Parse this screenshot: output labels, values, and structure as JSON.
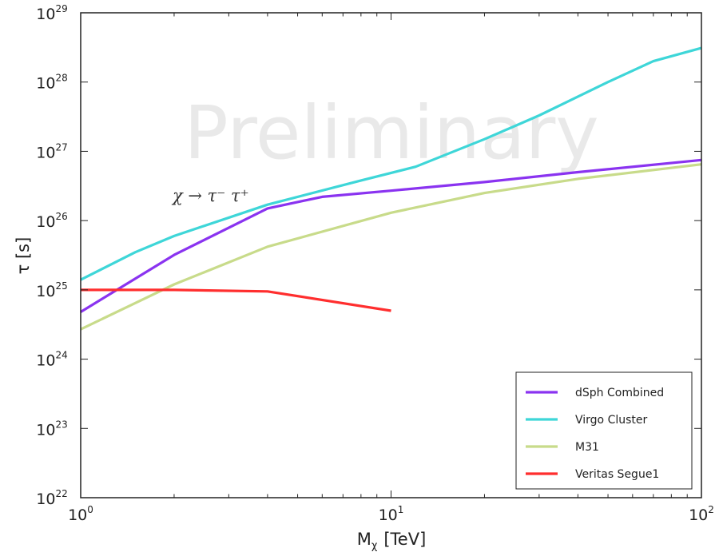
{
  "chart_data": {
    "type": "line",
    "xlabel": "M",
    "xlabel_sub": "χ",
    "xlabel_unit": "[TeV]",
    "ylabel": "τ [s]",
    "xscale": "log",
    "yscale": "log",
    "xlim": [
      1,
      100
    ],
    "ylim": [
      1e+22,
      1e+29
    ],
    "x_ticks": [
      {
        "value": 1,
        "base": "10",
        "exp": "0"
      },
      {
        "value": 10,
        "base": "10",
        "exp": "1"
      },
      {
        "value": 100,
        "base": "10",
        "exp": "2"
      }
    ],
    "y_ticks": [
      {
        "value": 1e+22,
        "base": "10",
        "exp": "22"
      },
      {
        "value": 1e+23,
        "base": "10",
        "exp": "23"
      },
      {
        "value": 1e+24,
        "base": "10",
        "exp": "24"
      },
      {
        "value": 1e+25,
        "base": "10",
        "exp": "25"
      },
      {
        "value": 1e+26,
        "base": "10",
        "exp": "26"
      },
      {
        "value": 1e+27,
        "base": "10",
        "exp": "27"
      },
      {
        "value": 1e+28,
        "base": "10",
        "exp": "28"
      },
      {
        "value": 1e+29,
        "base": "10",
        "exp": "29"
      }
    ],
    "grid": false,
    "legend_position": "bottom-right",
    "watermark": "Preliminary",
    "annotation": "χ → τ⁻ τ⁺",
    "series": [
      {
        "name": "dSph Combined",
        "color": "#8a33f0",
        "x": [
          1,
          2,
          4,
          6,
          10,
          20,
          40,
          100
        ],
        "y": [
          4.8e+24,
          3.2e+25,
          1.5e+26,
          2.2e+26,
          2.7e+26,
          3.6e+26,
          5e+26,
          7.5e+26
        ]
      },
      {
        "name": "Virgo Cluster",
        "color": "#3ed6d8",
        "x": [
          1,
          1.5,
          2,
          4,
          8,
          12,
          20,
          30,
          50,
          70,
          100
        ],
        "y": [
          1.4e+25,
          3.5e+25,
          6e+25,
          1.7e+26,
          3.8e+26,
          6e+26,
          1.5e+27,
          3.3e+27,
          1e+28,
          2e+28,
          3.1e+28
        ]
      },
      {
        "name": "M31",
        "color": "#c8db8a",
        "x": [
          1,
          2,
          4,
          10,
          20,
          40,
          100
        ],
        "y": [
          2.7e+24,
          1.2e+25,
          4.2e+25,
          1.3e+26,
          2.5e+26,
          4e+26,
          6.5e+26
        ]
      },
      {
        "name": "Veritas Segue1",
        "color": "#ff2e2e",
        "x": [
          1,
          2,
          4,
          10
        ],
        "y": [
          1e+25,
          1e+25,
          9.5e+24,
          5e+24
        ]
      }
    ]
  }
}
